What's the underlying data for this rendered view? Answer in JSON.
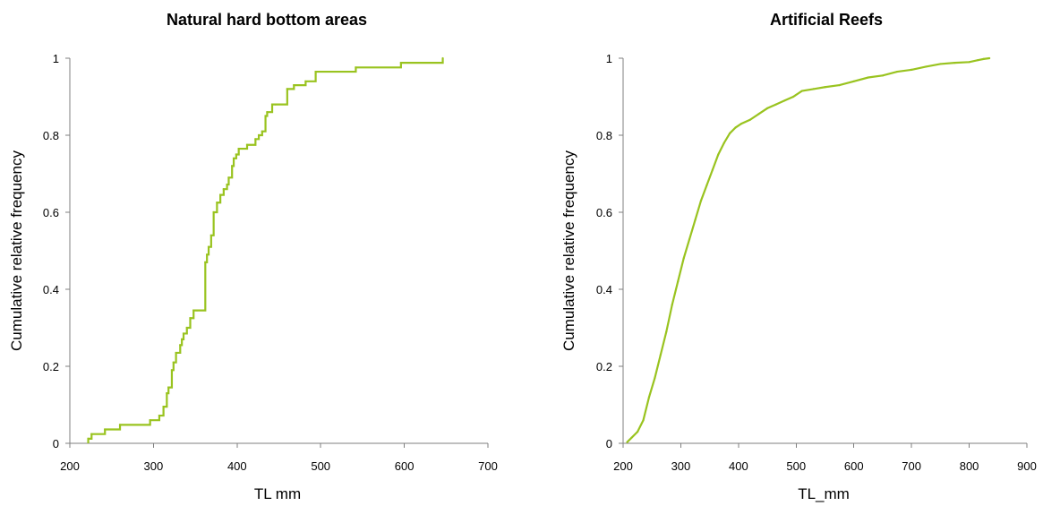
{
  "chart_data": [
    {
      "type": "line",
      "title": "Natural hard bottom areas",
      "xlabel": "TL mm",
      "ylabel": "Cumulative relative frequency",
      "xlim": [
        200,
        700
      ],
      "ylim": [
        0,
        1
      ],
      "xticks": [
        "200",
        "300",
        "400",
        "500",
        "600",
        "700"
      ],
      "yticks": [
        "0",
        "0.2",
        "0.4",
        "0.6",
        "0.8",
        "1"
      ],
      "grid": false,
      "legend": "none",
      "color": "#99c31f",
      "step": true,
      "x": [
        222,
        226,
        242,
        260,
        296,
        307,
        312,
        316,
        318,
        322,
        324,
        327,
        332,
        334,
        336,
        340,
        344,
        348,
        352,
        362,
        364,
        366,
        369,
        372,
        376,
        380,
        384,
        388,
        390,
        394,
        396,
        399,
        402,
        406,
        412,
        422,
        426,
        430,
        434,
        436,
        442,
        446,
        460,
        468,
        482,
        494,
        542,
        596,
        646
      ],
      "y": [
        0.012,
        0.024,
        0.036,
        0.048,
        0.06,
        0.072,
        0.095,
        0.13,
        0.145,
        0.19,
        0.21,
        0.235,
        0.255,
        0.27,
        0.285,
        0.3,
        0.325,
        0.345,
        0.345,
        0.47,
        0.49,
        0.51,
        0.54,
        0.6,
        0.625,
        0.645,
        0.66,
        0.672,
        0.69,
        0.72,
        0.74,
        0.75,
        0.765,
        0.765,
        0.775,
        0.79,
        0.8,
        0.81,
        0.85,
        0.86,
        0.88,
        0.88,
        0.92,
        0.93,
        0.94,
        0.965,
        0.976,
        0.988,
        1.0
      ]
    },
    {
      "type": "line",
      "title": "Artificial Reefs",
      "xlabel": "TL_mm",
      "ylabel": "Cumulative relative frequency",
      "xlim": [
        200,
        900
      ],
      "ylim": [
        0,
        1
      ],
      "xticks": [
        "200",
        "300",
        "400",
        "500",
        "600",
        "700",
        "800",
        "900"
      ],
      "yticks": [
        "0",
        "0.2",
        "0.4",
        "0.6",
        "0.8",
        "1"
      ],
      "grid": false,
      "legend": "none",
      "color": "#99c31f",
      "step": false,
      "x": [
        207,
        215,
        225,
        235,
        245,
        255,
        265,
        275,
        285,
        295,
        305,
        315,
        325,
        335,
        345,
        355,
        365,
        375,
        385,
        395,
        405,
        420,
        435,
        450,
        465,
        480,
        495,
        510,
        530,
        550,
        575,
        600,
        625,
        650,
        675,
        700,
        725,
        750,
        775,
        800,
        815,
        825,
        835
      ],
      "y": [
        0.003,
        0.015,
        0.03,
        0.06,
        0.12,
        0.17,
        0.23,
        0.29,
        0.36,
        0.42,
        0.48,
        0.53,
        0.58,
        0.63,
        0.67,
        0.71,
        0.75,
        0.78,
        0.805,
        0.82,
        0.83,
        0.84,
        0.855,
        0.87,
        0.88,
        0.89,
        0.9,
        0.915,
        0.92,
        0.925,
        0.93,
        0.94,
        0.95,
        0.955,
        0.965,
        0.97,
        0.978,
        0.985,
        0.988,
        0.99,
        0.995,
        0.998,
        1.0
      ]
    }
  ]
}
